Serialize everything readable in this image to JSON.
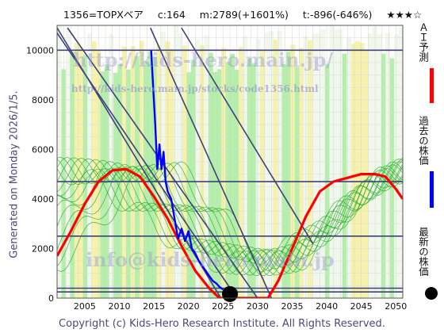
{
  "header": {
    "code": "1356=TOPXベア",
    "current": "c:164",
    "max": "m:2789(+1601%)",
    "target": "t:-896(-646%)",
    "stars": "★★★☆"
  },
  "side_note": "Generated on Monday 2026/1/5.",
  "copyright": "Copyright (c) Kids-Hero Research Institute. All Rights Reserved.",
  "watermark": {
    "url": "http://kids-hero.main.jp/",
    "url2": "http://kids-hero.main.jp/stocks/code1356.html",
    "email": "info@kids-hero.main.jp"
  },
  "legend": {
    "forecast": "ＡＩ予測",
    "past": "過去の株価",
    "latest": "最新の株価"
  },
  "colors": {
    "forecast": "#ff0000",
    "past": "#0000ff",
    "latest": "#000000",
    "ensemble": "#22aa22",
    "band_green": "#a8ec9c",
    "band_yellow": "#f4f0a0",
    "trendline": "#40407a"
  },
  "chart_data": {
    "type": "line",
    "xlim": [
      2001,
      2051
    ],
    "ylim": [
      0,
      11000
    ],
    "x_ticks": [
      2005,
      2010,
      2015,
      2020,
      2025,
      2030,
      2035,
      2040,
      2045,
      2050
    ],
    "y_ticks": [
      0,
      2000,
      4000,
      6000,
      8000,
      10000
    ],
    "horizontal_lines": [
      10000,
      4700,
      2500,
      400,
      250
    ],
    "trendlines": [
      [
        [
          2000.5,
          10900
        ],
        [
          2027,
          0
        ]
      ],
      [
        [
          2001,
          10900
        ],
        [
          2024.7,
          0
        ]
      ],
      [
        [
          2002.5,
          10900
        ],
        [
          2030,
          0
        ]
      ],
      [
        [
          2014.5,
          10900
        ],
        [
          2032,
          0
        ]
      ],
      [
        [
          2019,
          10900
        ],
        [
          2038,
          2200
        ]
      ]
    ],
    "series": [
      {
        "name": "ＡＩ予測",
        "color": "#ff0000",
        "points": [
          [
            2001,
            1700
          ],
          [
            2003,
            2700
          ],
          [
            2005,
            3800
          ],
          [
            2007,
            4700
          ],
          [
            2009,
            5150
          ],
          [
            2011,
            5200
          ],
          [
            2013,
            4900
          ],
          [
            2015,
            4100
          ],
          [
            2017,
            3200
          ],
          [
            2019,
            2100
          ],
          [
            2021,
            1100
          ],
          [
            2023,
            400
          ],
          [
            2024.5,
            0
          ],
          [
            2031.5,
            0
          ],
          [
            2033,
            700
          ],
          [
            2035,
            2000
          ],
          [
            2037,
            3300
          ],
          [
            2039,
            4300
          ],
          [
            2041,
            4700
          ],
          [
            2043,
            4850
          ],
          [
            2045,
            5000
          ],
          [
            2047,
            5000
          ],
          [
            2048.5,
            4900
          ],
          [
            2050,
            4400
          ],
          [
            2051,
            4000
          ]
        ]
      },
      {
        "name": "過去の株価",
        "color": "#0000ff",
        "points": [
          [
            2014.6,
            10000
          ],
          [
            2014.9,
            8500
          ],
          [
            2015.2,
            7000
          ],
          [
            2015.5,
            5200
          ],
          [
            2015.8,
            6200
          ],
          [
            2016.1,
            5200
          ],
          [
            2016.4,
            5900
          ],
          [
            2016.7,
            4700
          ],
          [
            2017,
            4300
          ],
          [
            2017.5,
            4000
          ],
          [
            2018,
            3200
          ],
          [
            2018.5,
            2400
          ],
          [
            2019,
            2800
          ],
          [
            2019.5,
            2300
          ],
          [
            2020,
            2700
          ],
          [
            2020.5,
            2000
          ],
          [
            2021,
            1800
          ],
          [
            2021.5,
            1500
          ],
          [
            2022,
            1300
          ],
          [
            2022.5,
            1100
          ],
          [
            2023,
            900
          ],
          [
            2023.5,
            700
          ],
          [
            2024,
            600
          ],
          [
            2024.5,
            450
          ],
          [
            2025,
            350
          ]
        ]
      }
    ],
    "latest_point": [
      2026,
      164
    ]
  }
}
